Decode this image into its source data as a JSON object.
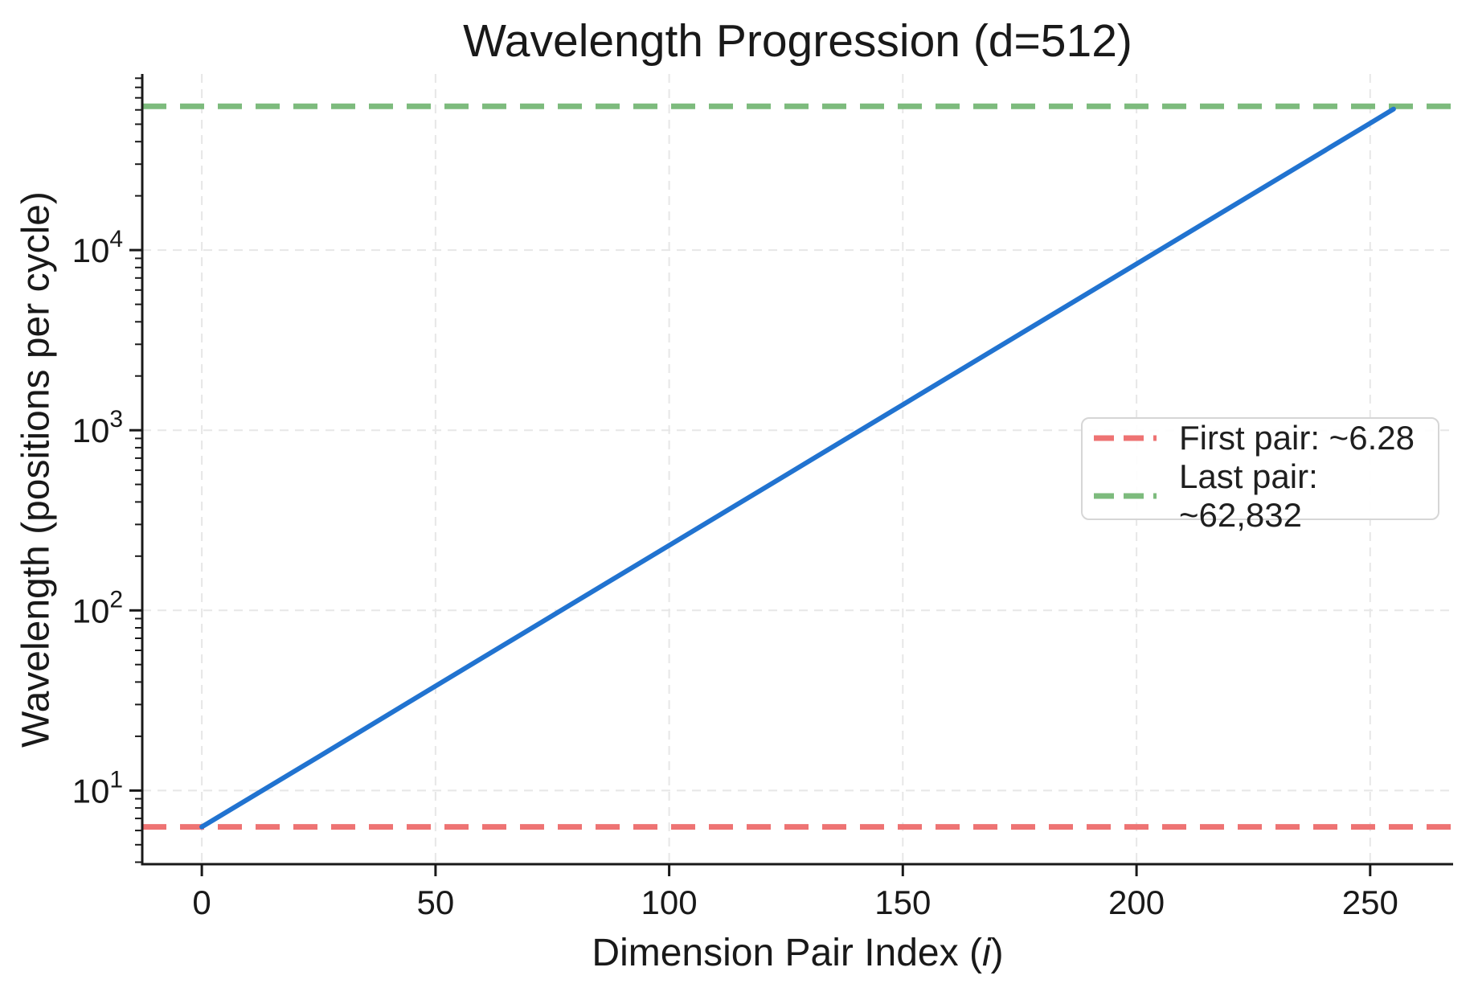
{
  "chart_data": {
    "type": "line",
    "title": "Wavelength Progression (d=512)",
    "xlabel": {
      "prefix": "Dimension Pair Index (",
      "italic": "i",
      "suffix": ")"
    },
    "ylabel": "Wavelength (positions per cycle)",
    "yscale": "log",
    "grid": true,
    "xlim": [
      -12.75,
      267.75
    ],
    "ylim": [
      3.9,
      95000
    ],
    "x_ticks": [
      0,
      50,
      100,
      150,
      200,
      250
    ],
    "y_tick_exponents": [
      1,
      2,
      3,
      4
    ],
    "y_tick_base": "10",
    "series": [
      {
        "name": "wavelength",
        "color": "#2173d0",
        "x": [
          0,
          25,
          50,
          75,
          100,
          125,
          150,
          175,
          200,
          225,
          250,
          255
        ],
        "y": [
          6.28,
          15.4,
          38.0,
          93.4,
          229.5,
          564.1,
          1386.7,
          3408.9,
          8379,
          20596,
          50627,
          60616
        ]
      }
    ],
    "hlines": [
      {
        "id": "first-pair",
        "label": "First pair: ~6.28",
        "value": 6.28,
        "color": "#ee7373"
      },
      {
        "id": "last-pair",
        "label": "Last pair: ~62,832",
        "value": 62832,
        "color": "#7dbb7d"
      }
    ],
    "legend_position": "center right",
    "colors": {
      "grid": "#e7e7e7",
      "axis": "#191919",
      "text": "#191919"
    }
  }
}
